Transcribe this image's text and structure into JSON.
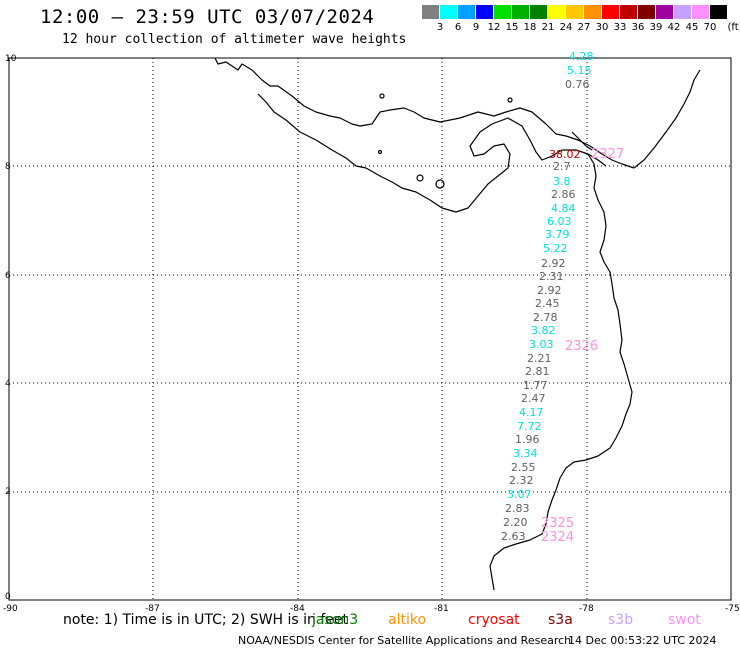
{
  "header": {
    "title": "12:00 – 23:59 UTC 03/07/2024",
    "subtitle": "12 hour collection of altimeter wave heights"
  },
  "legend": {
    "unit": "(ft)",
    "bins": [
      {
        "label": "3",
        "color": "#808080"
      },
      {
        "label": "6",
        "color": "#00ffff"
      },
      {
        "label": "9",
        "color": "#00a0ff"
      },
      {
        "label": "12",
        "color": "#0000ff"
      },
      {
        "label": "15",
        "color": "#00e000"
      },
      {
        "label": "18",
        "color": "#00b000"
      },
      {
        "label": "21",
        "color": "#008000"
      },
      {
        "label": "24",
        "color": "#ffff00"
      },
      {
        "label": "27",
        "color": "#ffc800"
      },
      {
        "label": "30",
        "color": "#ff9000"
      },
      {
        "label": "33",
        "color": "#ff0000"
      },
      {
        "label": "36",
        "color": "#c00000"
      },
      {
        "label": "39",
        "color": "#800000"
      },
      {
        "label": "42",
        "color": "#a000a0"
      },
      {
        "label": "45",
        "color": "#c8a0ff"
      },
      {
        "label": "70",
        "color": "#ff90ff"
      },
      {
        "label": "",
        "color": "#000000"
      }
    ]
  },
  "axes": {
    "lon_ticks": [
      "-90",
      "-87",
      "-84",
      "-81",
      "-78",
      "-75"
    ],
    "lat_ticks": [
      "0",
      "2",
      "4",
      "6",
      "8",
      "10"
    ]
  },
  "measurements": [
    {
      "text": "4.28",
      "color": "#00e0e0"
    },
    {
      "text": "5.15",
      "color": "#00e0e0"
    },
    {
      "text": "0.76",
      "color": "#606060"
    },
    {
      "text": "38.02",
      "color": "#c00000"
    },
    {
      "text": "2.7",
      "color": "#606060"
    },
    {
      "text": "3.8",
      "color": "#00e0e0"
    },
    {
      "text": "2.86",
      "color": "#606060"
    },
    {
      "text": "4.84",
      "color": "#00e0e0"
    },
    {
      "text": "6.03",
      "color": "#00e0e0"
    },
    {
      "text": "3.79",
      "color": "#00e0e0"
    },
    {
      "text": "5.22",
      "color": "#00e0e0"
    },
    {
      "text": "2.92",
      "color": "#606060"
    },
    {
      "text": "2.31",
      "color": "#606060"
    },
    {
      "text": "2.92",
      "color": "#606060"
    },
    {
      "text": "2.45",
      "color": "#606060"
    },
    {
      "text": "2.78",
      "color": "#606060"
    },
    {
      "text": "3.82",
      "color": "#00e0e0"
    },
    {
      "text": "3.03",
      "color": "#00e0e0"
    },
    {
      "text": "2.21",
      "color": "#606060"
    },
    {
      "text": "2.81",
      "color": "#606060"
    },
    {
      "text": "1.77",
      "color": "#606060"
    },
    {
      "text": "2.47",
      "color": "#606060"
    },
    {
      "text": "4.17",
      "color": "#00e0e0"
    },
    {
      "text": "7.72",
      "color": "#00e0e0"
    },
    {
      "text": "1.96",
      "color": "#606060"
    },
    {
      "text": "3.34",
      "color": "#00e0e0"
    },
    {
      "text": "2.55",
      "color": "#606060"
    },
    {
      "text": "2.32",
      "color": "#606060"
    },
    {
      "text": "3.07",
      "color": "#00e0e0"
    },
    {
      "text": "2.83",
      "color": "#606060"
    },
    {
      "text": "2.20",
      "color": "#606060"
    },
    {
      "text": "2.63",
      "color": "#606060"
    }
  ],
  "pass_times": [
    {
      "text": "2327",
      "color": "#ff90e0"
    },
    {
      "text": "2326",
      "color": "#ff90e0"
    },
    {
      "text": "2325",
      "color": "#ff90e0"
    },
    {
      "text": "2324",
      "color": "#ff90e0"
    }
  ],
  "footer": {
    "note": "note: 1) Time is in UTC; 2) SWH is in feet",
    "satellites": [
      {
        "name": "jason3",
        "color": "#008000"
      },
      {
        "name": "altiko",
        "color": "#ff9000"
      },
      {
        "name": "cryosat",
        "color": "#ff0000"
      },
      {
        "name": "s3a",
        "color": "#800000"
      },
      {
        "name": "s3b",
        "color": "#c8a0ff"
      },
      {
        "name": "swot",
        "color": "#ff90ff"
      }
    ],
    "credit": "NOAA/NESDIS Center for Satellite Applications and Research",
    "timestamp": "14 Dec 00:53:22 UTC 2024"
  }
}
